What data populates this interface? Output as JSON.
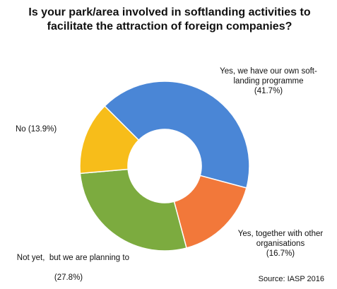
{
  "chart_data": {
    "type": "donut",
    "title": "Is your park/area involved in softlanding activities to facilitate the attraction of foreign companies?",
    "categories": [
      "Yes, we have our own soft-landing programme",
      "Yes, together with other organisations",
      "Not yet,  but we are planning to",
      "No"
    ],
    "values": [
      41.7,
      16.7,
      27.8,
      13.9
    ],
    "value_labels": [
      "(41.7%)",
      "(16.7%)",
      "(27.8%)",
      "(13.9%)"
    ],
    "colors": [
      "#4a86d6",
      "#f2783a",
      "#7cab3f",
      "#f7bd1a"
    ],
    "source": "Source: IASP 2016"
  }
}
